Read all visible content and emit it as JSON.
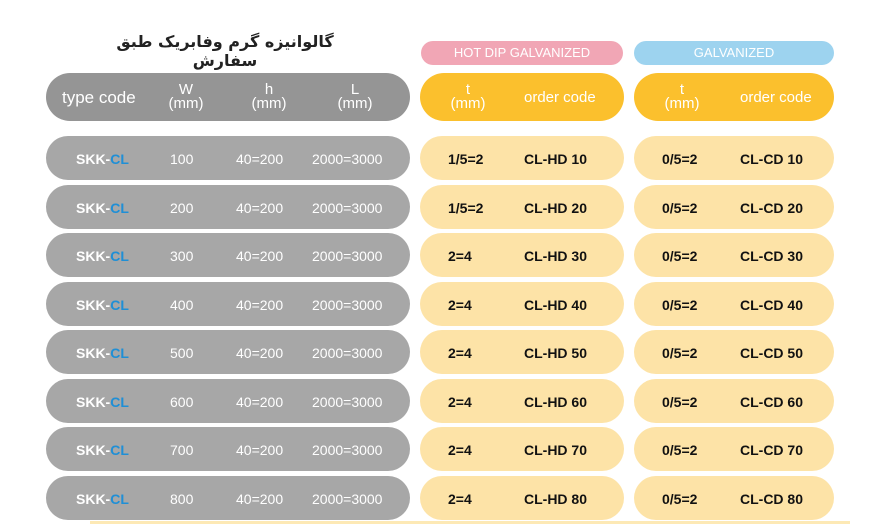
{
  "title": "گالوانیزه گرم وفابریک طبق سفارش",
  "labels": {
    "hot": "HOT DIP GALVANIZED",
    "galv": "GALVANIZED"
  },
  "header": {
    "type_code": "type code",
    "w": "W",
    "w_unit": "(mm)",
    "h": "h",
    "h_unit": "(mm)",
    "l": "L",
    "l_unit": "(mm)",
    "t": "t",
    "t_unit": "(mm)",
    "order_code": "order code"
  },
  "rows": [
    {
      "prefix": "SKK-",
      "suffix": "CL",
      "w": "100",
      "h": "40=200",
      "l": "2000=3000",
      "hd_t": "1/5=2",
      "hd_code": "CL-HD 10",
      "cd_t": "0/5=2",
      "cd_code": "CL-CD 10"
    },
    {
      "prefix": "SKK-",
      "suffix": "CL",
      "w": "200",
      "h": "40=200",
      "l": "2000=3000",
      "hd_t": "1/5=2",
      "hd_code": "CL-HD 20",
      "cd_t": "0/5=2",
      "cd_code": "CL-CD 20"
    },
    {
      "prefix": "SKK-",
      "suffix": "CL",
      "w": "300",
      "h": "40=200",
      "l": "2000=3000",
      "hd_t": "2=4",
      "hd_code": "CL-HD 30",
      "cd_t": "0/5=2",
      "cd_code": "CL-CD 30"
    },
    {
      "prefix": "SKK-",
      "suffix": "CL",
      "w": "400",
      "h": "40=200",
      "l": "2000=3000",
      "hd_t": "2=4",
      "hd_code": "CL-HD 40",
      "cd_t": "0/5=2",
      "cd_code": "CL-CD 40"
    },
    {
      "prefix": "SKK-",
      "suffix": "CL",
      "w": "500",
      "h": "40=200",
      "l": "2000=3000",
      "hd_t": "2=4",
      "hd_code": "CL-HD 50",
      "cd_t": "0/5=2",
      "cd_code": "CL-CD 50"
    },
    {
      "prefix": "SKK-",
      "suffix": "CL",
      "w": "600",
      "h": "40=200",
      "l": "2000=3000",
      "hd_t": "2=4",
      "hd_code": "CL-HD 60",
      "cd_t": "0/5=2",
      "cd_code": "CL-CD 60"
    },
    {
      "prefix": "SKK-",
      "suffix": "CL",
      "w": "700",
      "h": "40=200",
      "l": "2000=3000",
      "hd_t": "2=4",
      "hd_code": "CL-HD 70",
      "cd_t": "0/5=2",
      "cd_code": "CL-CD 70"
    },
    {
      "prefix": "SKK-",
      "suffix": "CL",
      "w": "800",
      "h": "40=200",
      "l": "2000=3000",
      "hd_t": "2=4",
      "hd_code": "CL-HD 80",
      "cd_t": "0/5=2",
      "cd_code": "CL-CD 80"
    }
  ],
  "colors": {
    "gray": "#a7a7a7",
    "yellow": "#fbc02d",
    "pale_yellow": "#fde3a7",
    "pink": "#f1a6b5",
    "sky": "#9dd3ef",
    "cl_blue": "#1f8fd6"
  }
}
